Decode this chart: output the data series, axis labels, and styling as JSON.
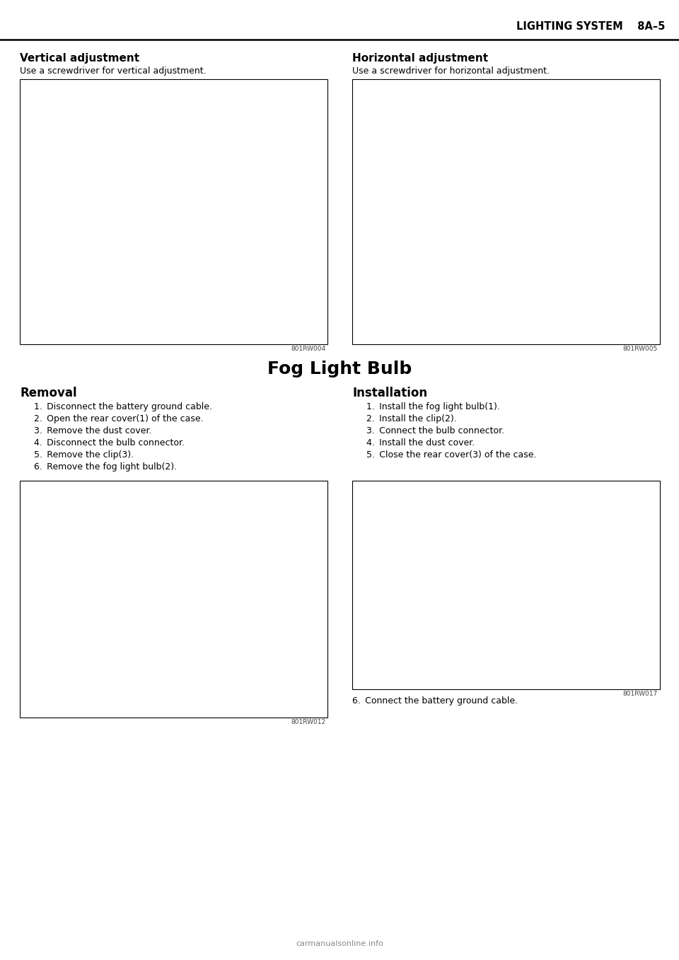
{
  "page_header_right": "LIGHTING SYSTEM    8A–5",
  "bg_color": "#ffffff",
  "text_color": "#000000",
  "section1_title": "Vertical adjustment",
  "section1_subtitle": "Use a screwdriver for vertical adjustment.",
  "section1_img_label": "801RW004",
  "section2_title": "Horizontal adjustment",
  "section2_subtitle": "Use a screwdriver for horizontal adjustment.",
  "section2_img_label": "801RW005",
  "center_title": "Fog Light Bulb",
  "section3_title": "Removal",
  "section3_items": [
    "1. Disconnect the battery ground cable.",
    "2. Open the rear cover(1) of the case.",
    "3. Remove the dust cover.",
    "4. Disconnect the bulb connector.",
    "5. Remove the clip(3).",
    "6. Remove the fog light bulb(2)."
  ],
  "section3_img_label": "801RW012",
  "section4_title": "Installation",
  "section4_items": [
    "1. Install the fog light bulb(1).",
    "2. Install the clip(2).",
    "3. Connect the bulb connector.",
    "4. Install the dust cover.",
    "5. Close the rear cover(3) of the case."
  ],
  "section4_extra": "6. Connect the battery ground cable.",
  "section4_img_label": "801RW017",
  "footer_text": "carmanualsonline.info"
}
